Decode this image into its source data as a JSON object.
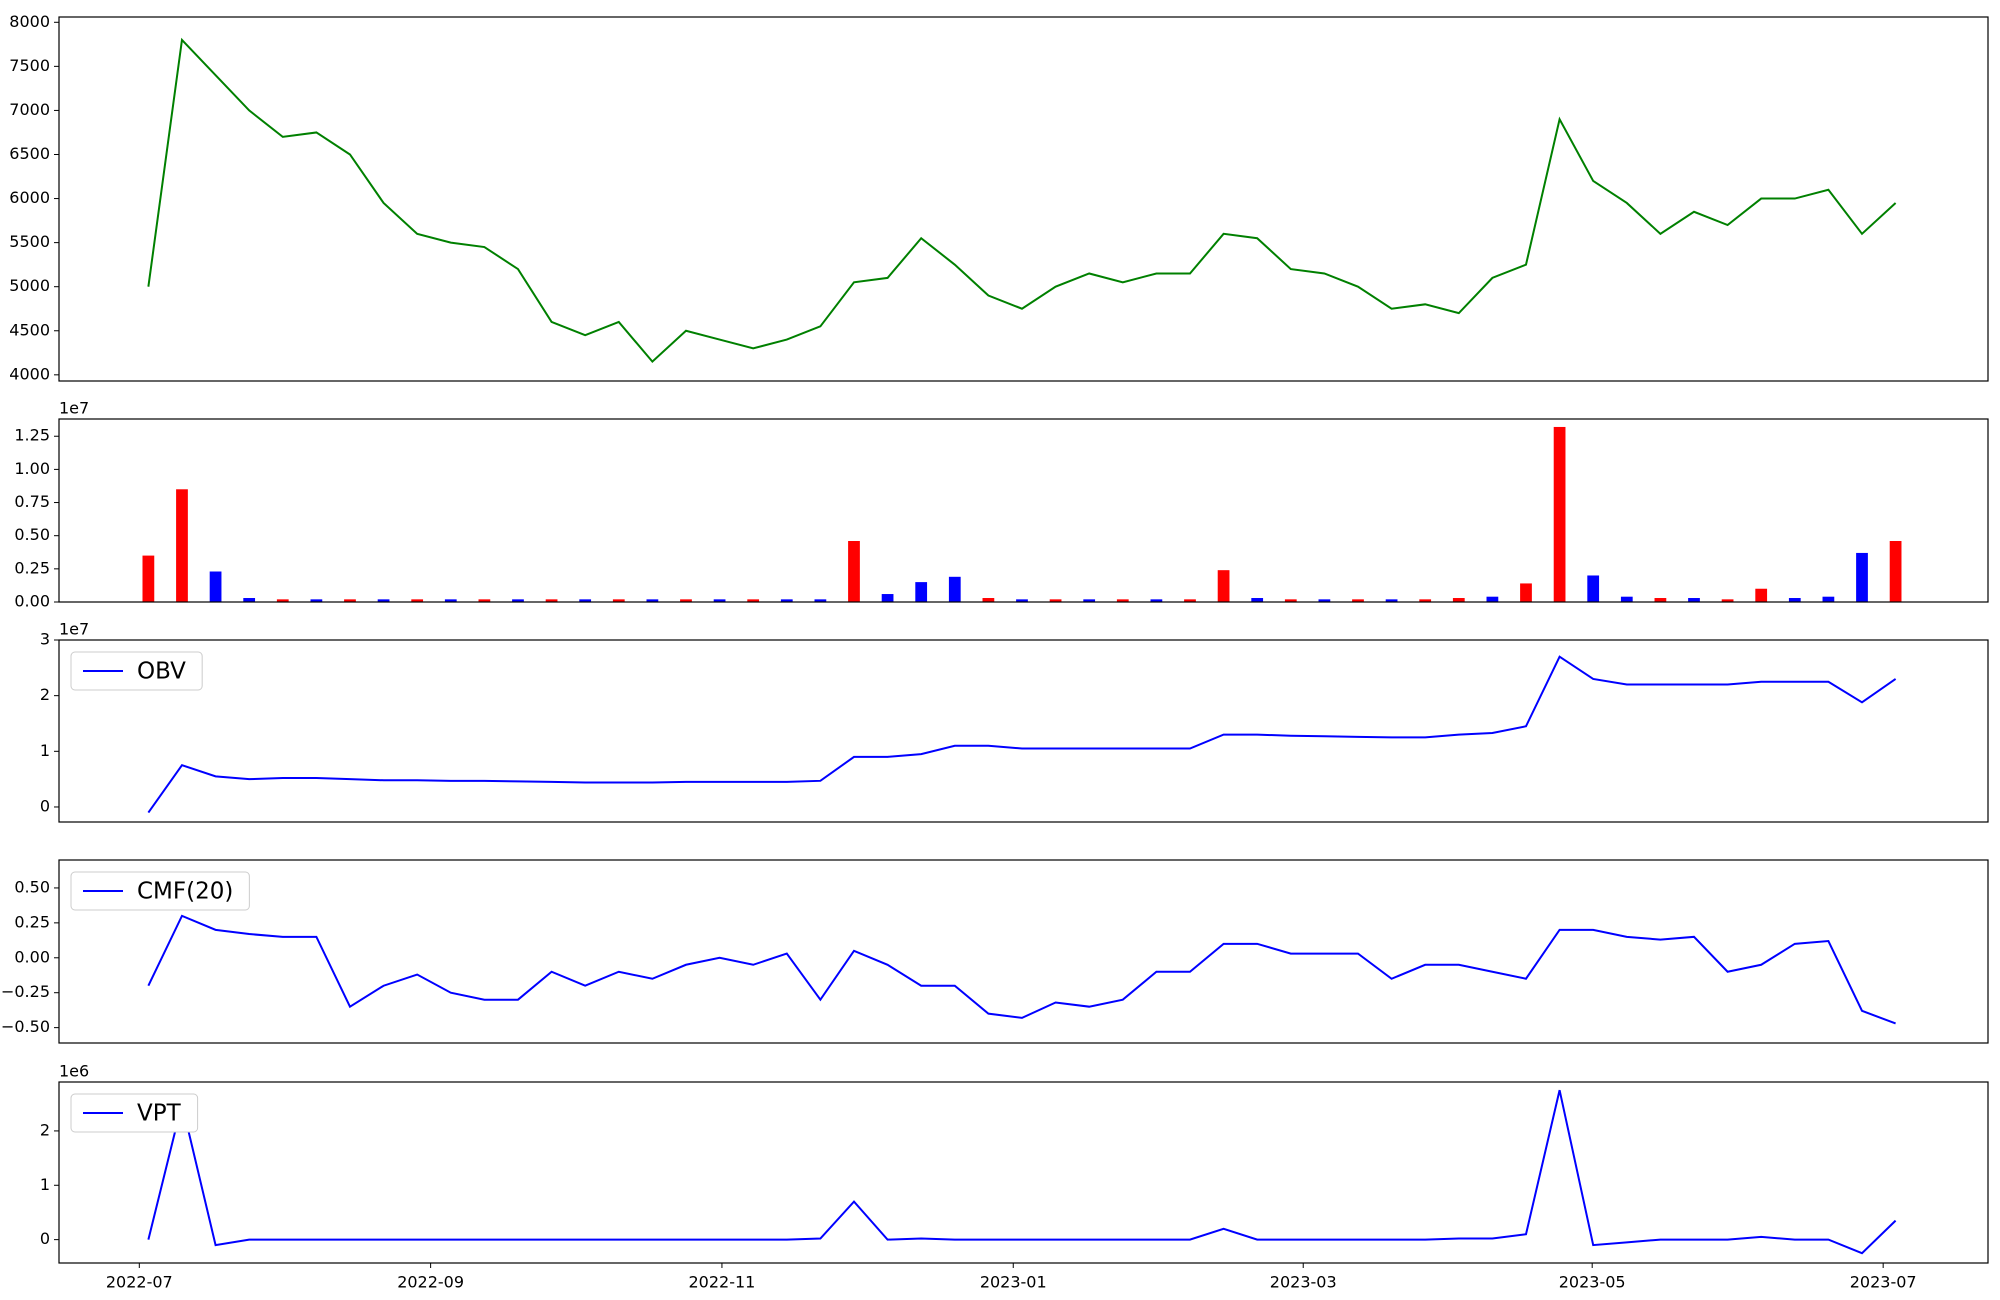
{
  "chart_data": [
    {
      "type": "line",
      "color": "#008000",
      "xlim": [
        -2.66,
        54.75
      ],
      "ylim": [
        3930,
        8060
      ],
      "yticks": [
        4000,
        4500,
        5000,
        5500,
        6000,
        6500,
        7000,
        7500,
        8000
      ],
      "values": [
        5000,
        7800,
        7400,
        7000,
        6700,
        6750,
        6500,
        5950,
        5600,
        5500,
        5450,
        5200,
        4600,
        4450,
        4600,
        4150,
        4500,
        4400,
        4300,
        4400,
        4550,
        5050,
        5100,
        5550,
        5250,
        4900,
        4750,
        5000,
        5150,
        5050,
        5150,
        5150,
        5600,
        5550,
        5200,
        5150,
        5000,
        4750,
        4800,
        4700,
        5100,
        5250,
        6900,
        6200,
        5950,
        5600,
        5850,
        5700,
        6000,
        6000,
        6100,
        5600,
        5950
      ]
    },
    {
      "type": "bar",
      "offset_label": "1e7",
      "xlim": [
        -2.66,
        54.75
      ],
      "ylim": [
        0,
        1.38
      ],
      "yticks": [
        {
          "value": 0,
          "label": "0.00"
        },
        0.25,
        {
          "value": 0.5,
          "label": "0.50"
        },
        0.75,
        {
          "value": 1,
          "label": "1.00"
        },
        1.25
      ],
      "values": [
        0.35,
        0.85,
        0.23,
        0.03,
        0.02,
        0.02,
        0.02,
        0.02,
        0.02,
        0.02,
        0.02,
        0.02,
        0.02,
        0.02,
        0.02,
        0.02,
        0.02,
        0.02,
        0.02,
        0.02,
        0.02,
        0.46,
        0.06,
        0.15,
        0.19,
        0.03,
        0.02,
        0.02,
        0.02,
        0.02,
        0.02,
        0.02,
        0.24,
        0.03,
        0.02,
        0.02,
        0.02,
        0.02,
        0.02,
        0.03,
        0.04,
        0.14,
        1.32,
        0.2,
        0.04,
        0.03,
        0.03,
        0.02,
        0.1,
        0.03,
        0.04,
        0.37,
        0.46
      ],
      "colors": [
        "red",
        "red",
        "blue",
        "blue",
        "red",
        "blue",
        "red",
        "blue",
        "red",
        "blue",
        "red",
        "blue",
        "red",
        "blue",
        "red",
        "blue",
        "red",
        "blue",
        "red",
        "blue",
        "blue",
        "red",
        "blue",
        "blue",
        "blue",
        "red",
        "blue",
        "red",
        "blue",
        "red",
        "blue",
        "red",
        "red",
        "blue",
        "red",
        "blue",
        "red",
        "blue",
        "red",
        "red",
        "blue",
        "red",
        "red",
        "blue",
        "blue",
        "red",
        "blue",
        "red",
        "red",
        "blue",
        "blue",
        "blue",
        "red"
      ]
    },
    {
      "type": "line",
      "offset_label": "1e7",
      "xlim": [
        -2.66,
        54.75
      ],
      "ylim": [
        -0.27,
        3.0
      ],
      "yticks": [
        0,
        1,
        2,
        3
      ],
      "legend": "upper left",
      "series": [
        {
          "name": "OBV",
          "color": "blue",
          "values": [
            -0.1,
            0.75,
            0.55,
            0.5,
            0.52,
            0.52,
            0.5,
            0.48,
            0.48,
            0.47,
            0.47,
            0.46,
            0.45,
            0.44,
            0.44,
            0.44,
            0.45,
            0.45,
            0.45,
            0.45,
            0.47,
            0.9,
            0.9,
            0.95,
            1.1,
            1.1,
            1.05,
            1.05,
            1.05,
            1.05,
            1.05,
            1.05,
            1.3,
            1.3,
            1.28,
            1.27,
            1.26,
            1.25,
            1.25,
            1.3,
            1.33,
            1.45,
            2.7,
            2.3,
            2.2,
            2.2,
            2.2,
            2.2,
            2.25,
            2.25,
            2.25,
            1.88,
            2.3
          ]
        }
      ]
    },
    {
      "type": "line",
      "xlim": [
        -2.66,
        54.75
      ],
      "ylim": [
        -0.61,
        0.7
      ],
      "legend": "upper left",
      "yticks": [
        {
          "value": -0.5,
          "label": "−0.50"
        },
        {
          "value": -0.25,
          "label": "−0.25"
        },
        {
          "value": 0,
          "label": "0.00"
        },
        0.25,
        {
          "value": 0.5,
          "label": "0.50"
        }
      ],
      "series": [
        {
          "name": "CMF(20)",
          "color": "blue",
          "values": [
            -0.2,
            0.3,
            0.2,
            0.17,
            0.15,
            0.15,
            -0.35,
            -0.2,
            -0.12,
            -0.25,
            -0.3,
            -0.3,
            -0.1,
            -0.2,
            -0.1,
            -0.15,
            -0.05,
            0.0,
            -0.05,
            0.03,
            -0.3,
            0.05,
            -0.05,
            -0.2,
            -0.2,
            -0.4,
            -0.43,
            -0.32,
            -0.35,
            -0.3,
            -0.1,
            -0.1,
            0.1,
            0.1,
            0.03,
            0.03,
            0.03,
            -0.15,
            -0.05,
            -0.05,
            -0.1,
            -0.15,
            0.2,
            0.2,
            0.15,
            0.13,
            0.15,
            -0.1,
            -0.05,
            0.1,
            0.12,
            -0.38,
            -0.47
          ]
        }
      ]
    },
    {
      "type": "line",
      "offset_label": "1e6",
      "xlim": [
        -2.66,
        54.75
      ],
      "ylim": [
        -0.43,
        2.9
      ],
      "yticks": [
        0,
        1,
        2
      ],
      "legend": "upper left",
      "xticks": [
        {
          "value": -0.27,
          "label": "2022-07"
        },
        {
          "value": 8.4,
          "label": "2022-09"
        },
        {
          "value": 17.07,
          "label": "2022-11"
        },
        {
          "value": 25.74,
          "label": "2023-01"
        },
        {
          "value": 34.37,
          "label": "2023-03"
        },
        {
          "value": 42.97,
          "label": "2023-05"
        },
        {
          "value": 51.63,
          "label": "2023-07"
        }
      ],
      "series": [
        {
          "name": "VPT",
          "color": "blue",
          "values": [
            0,
            2.5,
            -0.1,
            0,
            0,
            0,
            0,
            0,
            0,
            0,
            0,
            0,
            0,
            0,
            0,
            0,
            0,
            0,
            0,
            0,
            0.02,
            0.7,
            0,
            0.02,
            0,
            0,
            0,
            0,
            0,
            0,
            0,
            0,
            0.2,
            0,
            0,
            0,
            0,
            0,
            0,
            0.02,
            0.02,
            0.1,
            2.75,
            -0.1,
            -0.05,
            0,
            0,
            0,
            0.05,
            0,
            0,
            -0.25,
            0.35
          ]
        }
      ]
    }
  ]
}
